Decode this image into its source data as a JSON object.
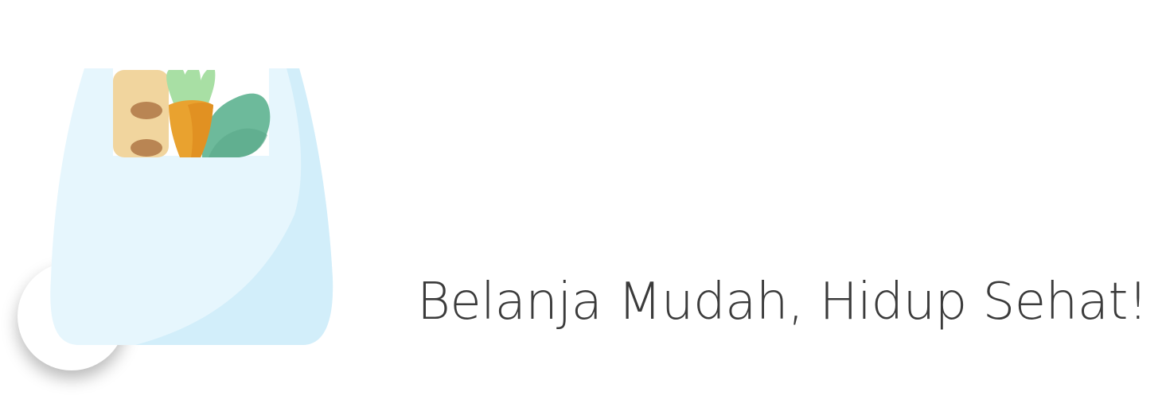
{
  "brand": {
    "tagline": "Belanja Mudah, Hidup Sehat!",
    "logo_icon": "grocery-bag-icon"
  },
  "colors": {
    "text": "#3b3b3b",
    "bag_light": "#e6f6fd",
    "bag_shade": "#d2eefa",
    "bread": "#f1d59e",
    "bread_spot": "#b98553",
    "carrot": "#e9a22f",
    "carrot_leaf": "#a8dfa4",
    "greens": "#6dba9b",
    "background": "#ffffff"
  }
}
